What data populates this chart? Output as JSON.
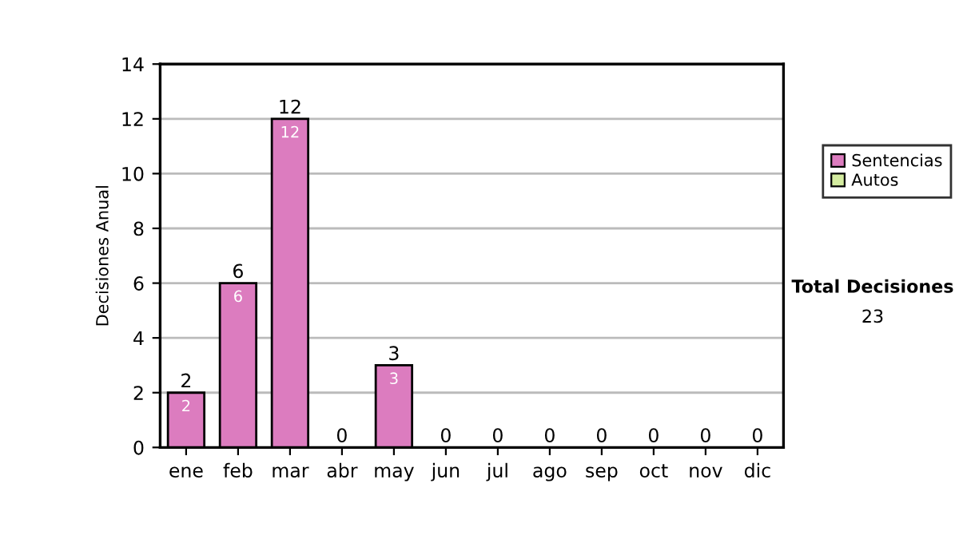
{
  "chart_data": {
    "type": "bar",
    "stacked": true,
    "ylabel": "Decisiones Anual",
    "categories": [
      "ene",
      "feb",
      "mar",
      "abr",
      "may",
      "jun",
      "jul",
      "ago",
      "sep",
      "oct",
      "nov",
      "dic"
    ],
    "series": [
      {
        "name": "Sentencias",
        "color": "#dc7cbf",
        "values": [
          2,
          6,
          12,
          0,
          3,
          0,
          0,
          0,
          0,
          0,
          0,
          0
        ],
        "value_labels": [
          "2",
          "6",
          "12",
          null,
          "3",
          null,
          null,
          null,
          null,
          null,
          null,
          null
        ]
      },
      {
        "name": "Autos",
        "color": "#d4eca0",
        "values": [
          0,
          0,
          0,
          0,
          0,
          0,
          0,
          0,
          0,
          0,
          0,
          0
        ]
      }
    ],
    "totals": [
      "2",
      "6",
      "12",
      "0",
      "3",
      "0",
      "0",
      "0",
      "0",
      "0",
      "0",
      "0"
    ],
    "ylim": [
      0,
      14
    ],
    "yticks": [
      0,
      2,
      4,
      6,
      8,
      10,
      12,
      14
    ],
    "grid": "y",
    "legend": "right",
    "annotations": [
      "Total Decisiones",
      "23"
    ]
  }
}
